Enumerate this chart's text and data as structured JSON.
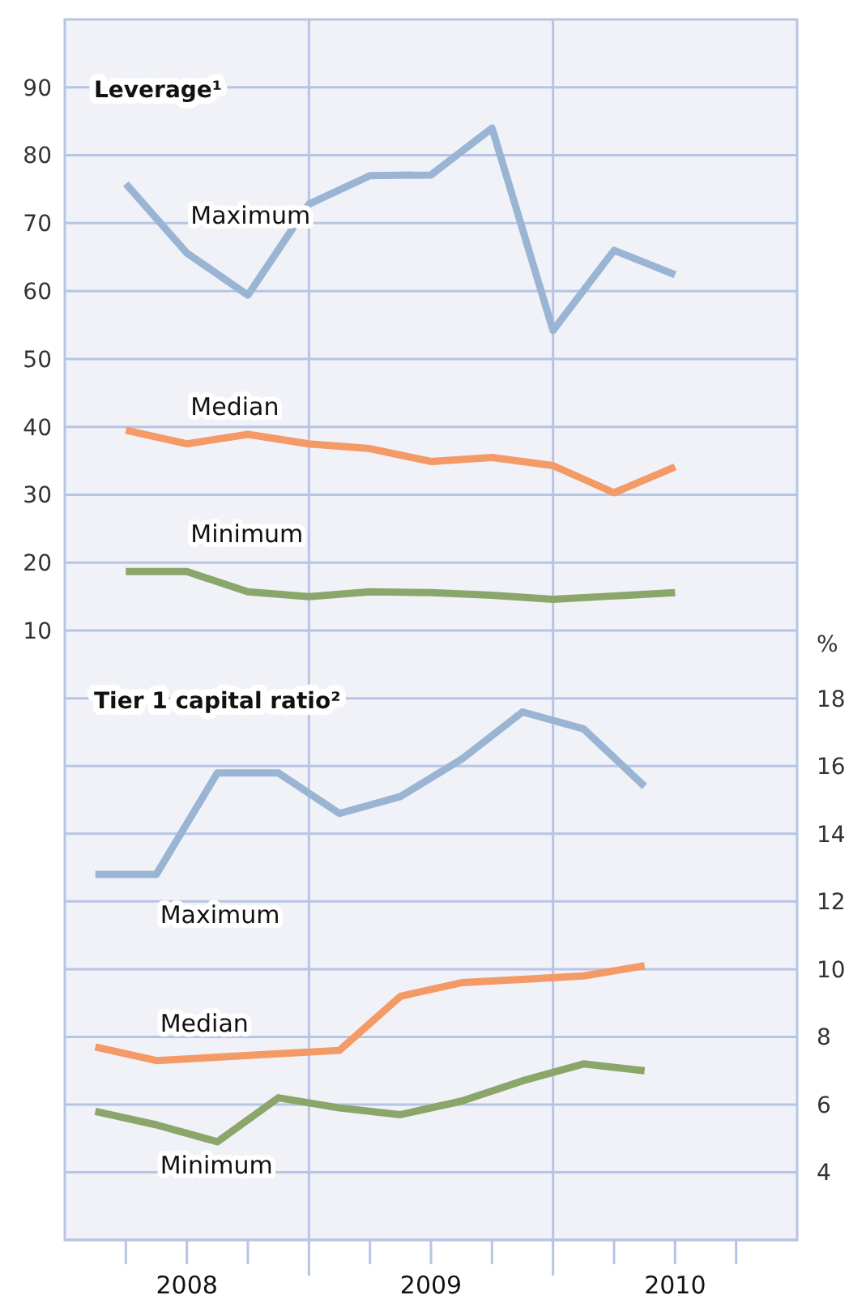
{
  "chart_data": [
    {
      "type": "line",
      "title": "Leverage¹",
      "xlim": [
        2008,
        2011
      ],
      "ylim": [
        5,
        100
      ],
      "yticks": [
        10,
        20,
        30,
        40,
        50,
        60,
        70,
        80,
        90
      ],
      "grid": "y",
      "tick_labels": "y",
      "line_style": "solid",
      "ref_lines": [
        {
          "axis": "x",
          "value": 2009
        },
        {
          "axis": "x",
          "value": 2010
        }
      ],
      "series": [
        {
          "name": "Maximum",
          "color": "#9ab5d4",
          "x": [
            2008.25,
            2008.5,
            2008.75,
            2009,
            2009.25,
            2009.5,
            2009.75,
            2010,
            2010.25,
            2010.5
          ],
          "values": [
            75.8,
            65.6,
            59.4,
            72.8,
            77.0,
            77.1,
            84.0,
            54.2,
            66.0,
            62.4
          ]
        },
        {
          "name": "Median",
          "color": "#f39a66",
          "x": [
            2008.25,
            2008.5,
            2008.75,
            2009,
            2009.25,
            2009.5,
            2009.75,
            2010,
            2010.25,
            2010.5
          ],
          "values": [
            39.5,
            37.5,
            38.9,
            37.5,
            36.8,
            34.9,
            35.5,
            34.3,
            30.3,
            34.1
          ]
        },
        {
          "name": "Minimum",
          "color": "#8ba66a",
          "x": [
            2008.25,
            2008.5,
            2008.75,
            2009,
            2009.25,
            2009.5,
            2009.75,
            2010,
            2010.25,
            2010.5
          ],
          "values": [
            18.7,
            18.7,
            15.7,
            15.0,
            15.7,
            15.6,
            15.2,
            14.6,
            15.1,
            15.6
          ]
        }
      ]
    },
    {
      "type": "line",
      "title": "Tier 1 capital ratio²",
      "y2label": "%",
      "xlim": [
        2008,
        2011
      ],
      "y2lim": [
        2,
        19
      ],
      "y2ticks": [
        4,
        6,
        8,
        10,
        12,
        14,
        16,
        18
      ],
      "grid": "y",
      "line_style": "solid",
      "xticks": [
        {
          "value": 2008.25,
          "label": null
        },
        {
          "value": 2008.5,
          "label": "2008"
        },
        {
          "value": 2008.75,
          "label": null
        },
        {
          "value": 2009.25,
          "label": null
        },
        {
          "value": 2009.5,
          "label": "2009"
        },
        {
          "value": 2009.75,
          "label": null
        },
        {
          "value": 2010.25,
          "label": null
        },
        {
          "value": 2010.5,
          "label": "2010"
        },
        {
          "value": 2010.75,
          "label": null
        }
      ],
      "ref_lines": [
        {
          "axis": "x",
          "value": 2009
        },
        {
          "axis": "x",
          "value": 2010
        }
      ],
      "series": [
        {
          "name": "Maximum",
          "color": "#9ab5d4",
          "axis": "y2",
          "x": [
            2008.125,
            2008.375,
            2008.625,
            2008.875,
            2009.125,
            2009.375,
            2009.625,
            2009.875,
            2010.125,
            2010.375
          ],
          "values": [
            12.8,
            12.8,
            15.8,
            15.8,
            14.6,
            15.1,
            16.2,
            17.6,
            17.1,
            15.4
          ]
        },
        {
          "name": "Median",
          "color": "#f39a66",
          "axis": "y2",
          "x": [
            2008.125,
            2008.375,
            2008.625,
            2008.875,
            2009.125,
            2009.375,
            2009.625,
            2009.875,
            2010.125,
            2010.375
          ],
          "values": [
            7.7,
            7.3,
            7.4,
            7.5,
            7.6,
            9.2,
            9.6,
            9.7,
            9.8,
            10.1
          ]
        },
        {
          "name": "Minimum",
          "color": "#8ba66a",
          "axis": "y2",
          "x": [
            2008.125,
            2008.375,
            2008.625,
            2008.875,
            2009.125,
            2009.375,
            2009.625,
            2009.875,
            2010.125,
            2010.375
          ],
          "values": [
            5.8,
            5.4,
            4.9,
            6.2,
            5.9,
            5.7,
            6.1,
            6.7,
            7.2,
            7.0
          ]
        }
      ]
    }
  ]
}
